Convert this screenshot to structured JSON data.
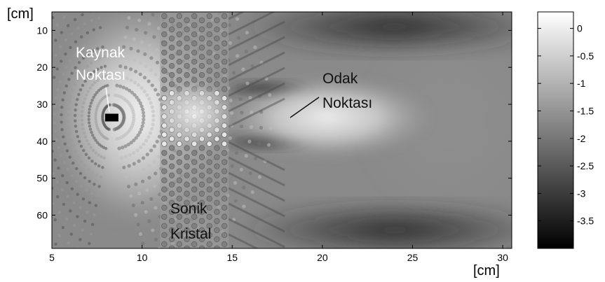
{
  "chart_data": {
    "type": "heatmap",
    "title": "",
    "x_unit": "[cm]",
    "y_unit": "[cm]",
    "xlim": [
      5,
      30.5
    ],
    "ylim": [
      5,
      69
    ],
    "y_reversed": true,
    "x_ticks": [
      5,
      10,
      15,
      20,
      25,
      30
    ],
    "y_ticks": [
      10,
      20,
      30,
      40,
      50,
      60
    ],
    "colorbar": {
      "range": [
        -4,
        0.3
      ],
      "ticks": [
        0,
        -0.5,
        -1,
        -1.5,
        -2,
        -2.5,
        -3,
        -3.5
      ],
      "colormap": "gray"
    },
    "features": {
      "source": {
        "x": 8.3,
        "y": 33.5
      },
      "crystal_x_range": [
        11,
        14.8
      ],
      "focus": {
        "x": 19.5,
        "y": 33.5
      }
    },
    "annotations": [
      {
        "id": "source",
        "lines": [
          "Kaynak",
          "Noktası"
        ],
        "color": "#ffffff"
      },
      {
        "id": "focus",
        "lines": [
          "Odak",
          "Noktası"
        ],
        "color": "#111111"
      },
      {
        "id": "crystal",
        "lines": [
          "Sonik",
          "Kristal"
        ],
        "color": "#111111"
      }
    ]
  }
}
